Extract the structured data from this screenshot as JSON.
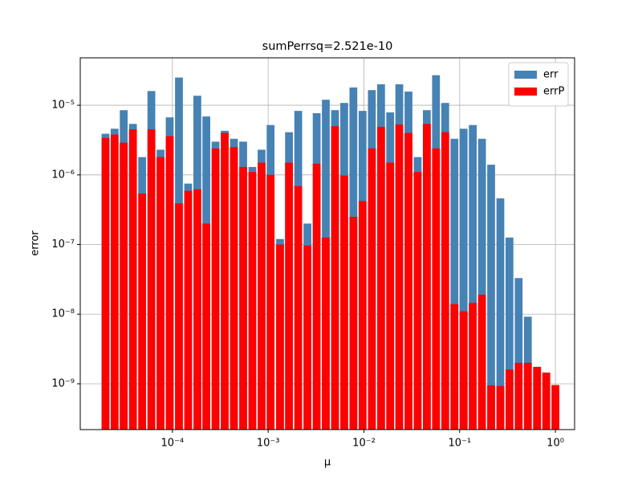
{
  "chart_data": {
    "type": "bar",
    "title": "sumPerrsq=2.521e-10",
    "xlabel": "μ",
    "ylabel": "error",
    "x": [
      2e-05,
      2.49e-05,
      3.1e-05,
      3.87e-05,
      4.83e-05,
      6.03e-05,
      7.51e-05,
      9.36e-05,
      0.000117,
      0.000146,
      0.000182,
      0.000226,
      0.000282,
      0.000352,
      0.000439,
      0.000548,
      0.000684,
      0.000853,
      0.00106,
      0.00133,
      0.00165,
      0.00206,
      0.00257,
      0.00321,
      0.004,
      0.00499,
      0.00622,
      0.00776,
      0.00968,
      0.0121,
      0.0151,
      0.0188,
      0.0234,
      0.0292,
      0.0364,
      0.0454,
      0.0566,
      0.0706,
      0.0881,
      0.11,
      0.137,
      0.171,
      0.213,
      0.266,
      0.331,
      0.413,
      0.515,
      0.643,
      0.802,
      1.0
    ],
    "series": [
      {
        "name": "err",
        "color": "#4682b4",
        "values": [
          3.9e-06,
          4.6e-06,
          8.5e-06,
          5.4e-06,
          1.8e-06,
          1.6e-05,
          2.3e-06,
          6.7e-06,
          2.5e-05,
          7.5e-07,
          1.37e-05,
          6.9e-06,
          3e-06,
          4.3e-06,
          3.3e-06,
          3e-06,
          1.3e-06,
          2.3e-06,
          5.2e-06,
          1.2e-07,
          4.1e-06,
          8.3e-06,
          2e-07,
          7.7e-06,
          1.2e-05,
          8.5e-06,
          1.08e-05,
          1.8e-05,
          8.3e-06,
          1.65e-05,
          2e-05,
          7.9e-06,
          2e-05,
          1.57e-05,
          1.8e-06,
          8.5e-06,
          2.7e-05,
          1.08e-05,
          3.3e-06,
          4.6e-06,
          5.2e-06,
          3.3e-06,
          1.4e-06,
          4.6e-07,
          1.26e-07,
          3.3e-08,
          9.2e-09,
          1.75e-09,
          1.45e-09,
          9.6e-10
        ]
      },
      {
        "name": "errP",
        "color": "#ff0000",
        "values": [
          3.4e-06,
          3.8e-06,
          2.9e-06,
          4.5e-06,
          5.4e-07,
          4.5e-06,
          1.8e-06,
          3.6e-06,
          3.9e-07,
          5.9e-07,
          6.2e-07,
          2e-07,
          2.4e-06,
          4e-06,
          2.5e-06,
          1.3e-06,
          1.1e-06,
          1.5e-06,
          1e-06,
          1e-07,
          1.5e-06,
          6.9e-07,
          9.7e-08,
          1.45e-06,
          1.26e-07,
          5e-06,
          9.8e-07,
          2.5e-07,
          4.2e-07,
          2.4e-06,
          4.9e-06,
          1.5e-06,
          5.3e-06,
          4e-06,
          1.1e-06,
          5.4e-06,
          2.4e-06,
          4.1e-06,
          1.4e-08,
          1.1e-08,
          1.45e-08,
          1.9e-08,
          9.5e-10,
          9.3e-10,
          1.6e-09,
          2e-09,
          2e-09,
          1.75e-09,
          1.45e-09,
          9.6e-10
        ]
      }
    ],
    "xscale": "log",
    "yscale": "log",
    "xlim": [
      1.09e-05,
      1.585
    ],
    "ylim": [
      2.2e-10,
      4.8e-05
    ],
    "xticks": [
      {
        "value": 0.0001,
        "label": "10⁻⁴"
      },
      {
        "value": 0.001,
        "label": "10⁻³"
      },
      {
        "value": 0.01,
        "label": "10⁻²"
      },
      {
        "value": 0.1,
        "label": "10⁻¹"
      },
      {
        "value": 1,
        "label": "10⁰"
      }
    ],
    "yticks": [
      {
        "value": 1e-09,
        "label": "10⁻⁹"
      },
      {
        "value": 1e-08,
        "label": "10⁻⁸"
      },
      {
        "value": 1e-07,
        "label": "10⁻⁷"
      },
      {
        "value": 1e-06,
        "label": "10⁻⁶"
      },
      {
        "value": 1e-05,
        "label": "10⁻⁵"
      }
    ],
    "grid": true,
    "legend": "upper right"
  }
}
